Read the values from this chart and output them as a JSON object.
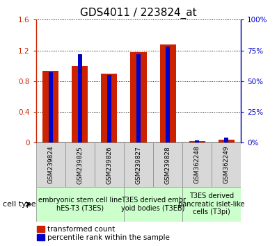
{
  "title": "GDS4011 / 223824_at",
  "samples": [
    "GSM239824",
    "GSM239825",
    "GSM239826",
    "GSM239827",
    "GSM239828",
    "GSM362248",
    "GSM362249"
  ],
  "red_values": [
    0.93,
    1.0,
    0.9,
    1.18,
    1.28,
    0.02,
    0.04
  ],
  "blue_pct": [
    57,
    72,
    55,
    72,
    78,
    2,
    4
  ],
  "left_ylim": [
    0,
    1.6
  ],
  "right_ylim": [
    0,
    100
  ],
  "left_yticks": [
    0,
    0.4,
    0.8,
    1.2,
    1.6
  ],
  "right_yticks": [
    0,
    25,
    50,
    75,
    100
  ],
  "right_yticklabels": [
    "0%",
    "25%",
    "50%",
    "75%",
    "100%"
  ],
  "red_bar_width": 0.55,
  "blue_bar_width": 0.15,
  "red_color": "#cc2200",
  "blue_color": "#0000cc",
  "cat_groups": [
    {
      "label": "embryonic stem cell line\nhES-T3 (T3ES)",
      "indices": [
        0,
        1,
        2
      ],
      "color": "#ccffcc"
    },
    {
      "label": "T3ES derived embr\nyoid bodies (T3EB)",
      "indices": [
        3,
        4
      ],
      "color": "#ccffcc"
    },
    {
      "label": "T3ES derived\npancreatic islet-like\ncells (T3pi)",
      "indices": [
        5,
        6
      ],
      "color": "#ccffcc"
    }
  ],
  "legend_red": "transformed count",
  "legend_blue": "percentile rank within the sample",
  "cell_type_label": "cell type",
  "title_fontsize": 11,
  "tick_fontsize": 7.5,
  "label_fontsize": 6.5,
  "cat_fontsize": 7
}
